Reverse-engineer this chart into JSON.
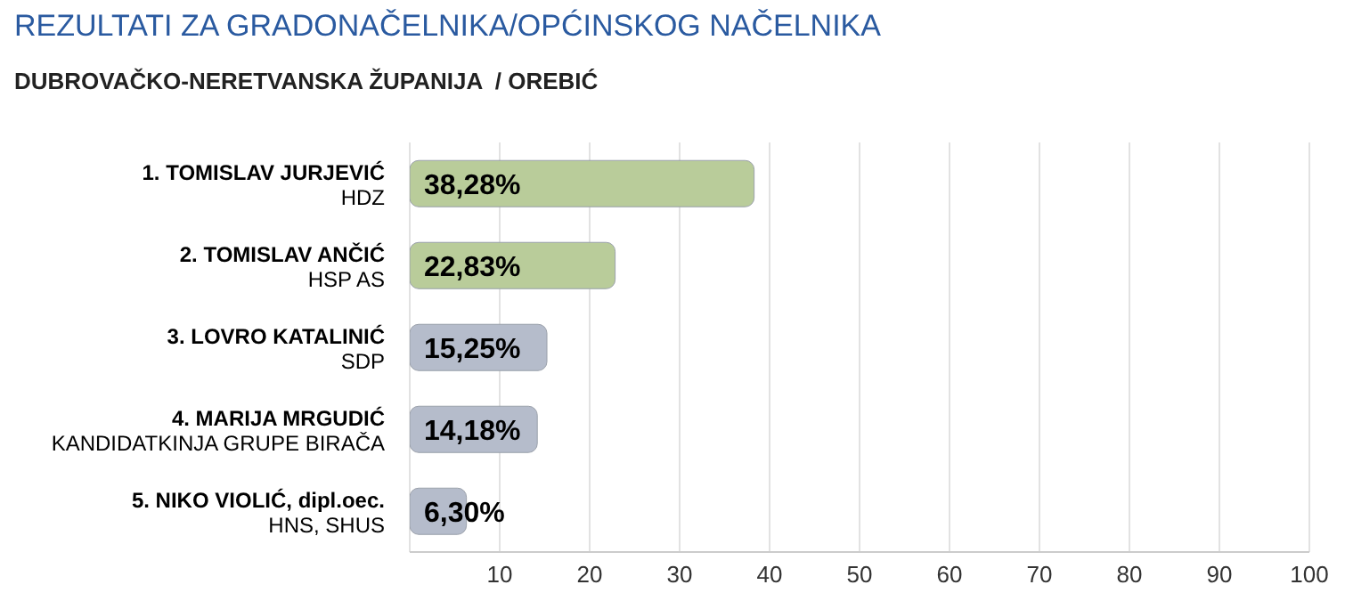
{
  "chart_data": {
    "type": "bar",
    "orientation": "horizontal",
    "title": "REZULTATI ZA GRADONAČELNIKA/OPĆINSKOG NAČELNIKA",
    "subtitle": "DUBROVAČKO-NERETVANSKA ŽUPANIJA  / OREBIĆ",
    "categories": [
      "1. TOMISLAV JURJEVIĆ\nHDZ",
      "2. TOMISLAV ANČIĆ\nHSP AS",
      "3. LOVRO KATALINIĆ\nSDP",
      "4. MARIJA MRGUDIĆ\nKANDIDATKINJA GRUPE BIRAČA",
      "5. NIKO VIOLIĆ, dipl.oec.\nHNS, SHUS"
    ],
    "values": [
      38.28,
      22.83,
      15.25,
      14.18,
      6.3
    ],
    "value_labels": [
      "38,28%",
      "22,83%",
      "15,25%",
      "14,18%",
      "6,30%"
    ],
    "colors": [
      "#b9cc9a",
      "#b9cc9a",
      "#b5bccb",
      "#b5bccb",
      "#b5bccb"
    ],
    "xlim": [
      0,
      100
    ],
    "xticks": [
      {
        "value": 0,
        "label": null
      },
      10,
      20,
      30,
      40,
      50,
      60,
      70,
      80,
      90,
      100
    ],
    "grid": "x"
  }
}
